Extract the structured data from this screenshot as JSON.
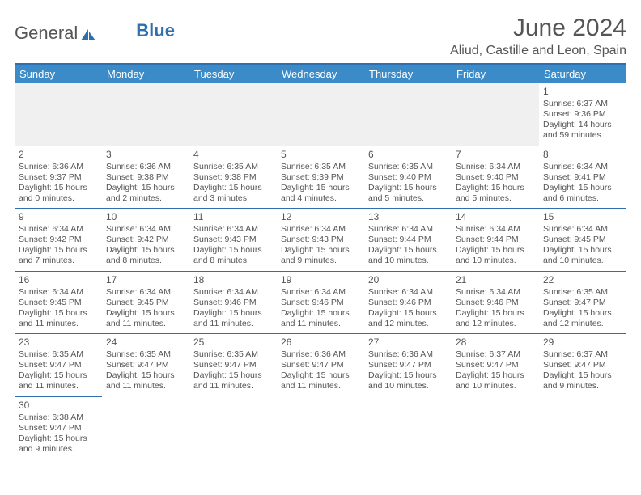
{
  "brand": {
    "part1": "General",
    "part2": "Blue"
  },
  "title": "June 2024",
  "location": "Aliud, Castille and Leon, Spain",
  "colors": {
    "header_bar": "#3b8bc9",
    "rule": "#2f6fb0",
    "text": "#555555",
    "blank_bg": "#f0f0f0"
  },
  "day_headers": [
    "Sunday",
    "Monday",
    "Tuesday",
    "Wednesday",
    "Thursday",
    "Friday",
    "Saturday"
  ],
  "weeks": [
    [
      null,
      null,
      null,
      null,
      null,
      null,
      {
        "n": "1",
        "sunrise": "Sunrise: 6:37 AM",
        "sunset": "Sunset: 9:36 PM",
        "daylight": "Daylight: 14 hours and 59 minutes."
      }
    ],
    [
      {
        "n": "2",
        "sunrise": "Sunrise: 6:36 AM",
        "sunset": "Sunset: 9:37 PM",
        "daylight": "Daylight: 15 hours and 0 minutes."
      },
      {
        "n": "3",
        "sunrise": "Sunrise: 6:36 AM",
        "sunset": "Sunset: 9:38 PM",
        "daylight": "Daylight: 15 hours and 2 minutes."
      },
      {
        "n": "4",
        "sunrise": "Sunrise: 6:35 AM",
        "sunset": "Sunset: 9:38 PM",
        "daylight": "Daylight: 15 hours and 3 minutes."
      },
      {
        "n": "5",
        "sunrise": "Sunrise: 6:35 AM",
        "sunset": "Sunset: 9:39 PM",
        "daylight": "Daylight: 15 hours and 4 minutes."
      },
      {
        "n": "6",
        "sunrise": "Sunrise: 6:35 AM",
        "sunset": "Sunset: 9:40 PM",
        "daylight": "Daylight: 15 hours and 5 minutes."
      },
      {
        "n": "7",
        "sunrise": "Sunrise: 6:34 AM",
        "sunset": "Sunset: 9:40 PM",
        "daylight": "Daylight: 15 hours and 5 minutes."
      },
      {
        "n": "8",
        "sunrise": "Sunrise: 6:34 AM",
        "sunset": "Sunset: 9:41 PM",
        "daylight": "Daylight: 15 hours and 6 minutes."
      }
    ],
    [
      {
        "n": "9",
        "sunrise": "Sunrise: 6:34 AM",
        "sunset": "Sunset: 9:42 PM",
        "daylight": "Daylight: 15 hours and 7 minutes."
      },
      {
        "n": "10",
        "sunrise": "Sunrise: 6:34 AM",
        "sunset": "Sunset: 9:42 PM",
        "daylight": "Daylight: 15 hours and 8 minutes."
      },
      {
        "n": "11",
        "sunrise": "Sunrise: 6:34 AM",
        "sunset": "Sunset: 9:43 PM",
        "daylight": "Daylight: 15 hours and 8 minutes."
      },
      {
        "n": "12",
        "sunrise": "Sunrise: 6:34 AM",
        "sunset": "Sunset: 9:43 PM",
        "daylight": "Daylight: 15 hours and 9 minutes."
      },
      {
        "n": "13",
        "sunrise": "Sunrise: 6:34 AM",
        "sunset": "Sunset: 9:44 PM",
        "daylight": "Daylight: 15 hours and 10 minutes."
      },
      {
        "n": "14",
        "sunrise": "Sunrise: 6:34 AM",
        "sunset": "Sunset: 9:44 PM",
        "daylight": "Daylight: 15 hours and 10 minutes."
      },
      {
        "n": "15",
        "sunrise": "Sunrise: 6:34 AM",
        "sunset": "Sunset: 9:45 PM",
        "daylight": "Daylight: 15 hours and 10 minutes."
      }
    ],
    [
      {
        "n": "16",
        "sunrise": "Sunrise: 6:34 AM",
        "sunset": "Sunset: 9:45 PM",
        "daylight": "Daylight: 15 hours and 11 minutes."
      },
      {
        "n": "17",
        "sunrise": "Sunrise: 6:34 AM",
        "sunset": "Sunset: 9:45 PM",
        "daylight": "Daylight: 15 hours and 11 minutes."
      },
      {
        "n": "18",
        "sunrise": "Sunrise: 6:34 AM",
        "sunset": "Sunset: 9:46 PM",
        "daylight": "Daylight: 15 hours and 11 minutes."
      },
      {
        "n": "19",
        "sunrise": "Sunrise: 6:34 AM",
        "sunset": "Sunset: 9:46 PM",
        "daylight": "Daylight: 15 hours and 11 minutes."
      },
      {
        "n": "20",
        "sunrise": "Sunrise: 6:34 AM",
        "sunset": "Sunset: 9:46 PM",
        "daylight": "Daylight: 15 hours and 12 minutes."
      },
      {
        "n": "21",
        "sunrise": "Sunrise: 6:34 AM",
        "sunset": "Sunset: 9:46 PM",
        "daylight": "Daylight: 15 hours and 12 minutes."
      },
      {
        "n": "22",
        "sunrise": "Sunrise: 6:35 AM",
        "sunset": "Sunset: 9:47 PM",
        "daylight": "Daylight: 15 hours and 12 minutes."
      }
    ],
    [
      {
        "n": "23",
        "sunrise": "Sunrise: 6:35 AM",
        "sunset": "Sunset: 9:47 PM",
        "daylight": "Daylight: 15 hours and 11 minutes."
      },
      {
        "n": "24",
        "sunrise": "Sunrise: 6:35 AM",
        "sunset": "Sunset: 9:47 PM",
        "daylight": "Daylight: 15 hours and 11 minutes."
      },
      {
        "n": "25",
        "sunrise": "Sunrise: 6:35 AM",
        "sunset": "Sunset: 9:47 PM",
        "daylight": "Daylight: 15 hours and 11 minutes."
      },
      {
        "n": "26",
        "sunrise": "Sunrise: 6:36 AM",
        "sunset": "Sunset: 9:47 PM",
        "daylight": "Daylight: 15 hours and 11 minutes."
      },
      {
        "n": "27",
        "sunrise": "Sunrise: 6:36 AM",
        "sunset": "Sunset: 9:47 PM",
        "daylight": "Daylight: 15 hours and 10 minutes."
      },
      {
        "n": "28",
        "sunrise": "Sunrise: 6:37 AM",
        "sunset": "Sunset: 9:47 PM",
        "daylight": "Daylight: 15 hours and 10 minutes."
      },
      {
        "n": "29",
        "sunrise": "Sunrise: 6:37 AM",
        "sunset": "Sunset: 9:47 PM",
        "daylight": "Daylight: 15 hours and 9 minutes."
      }
    ],
    [
      {
        "n": "30",
        "sunrise": "Sunrise: 6:38 AM",
        "sunset": "Sunset: 9:47 PM",
        "daylight": "Daylight: 15 hours and 9 minutes."
      },
      null,
      null,
      null,
      null,
      null,
      null
    ]
  ]
}
